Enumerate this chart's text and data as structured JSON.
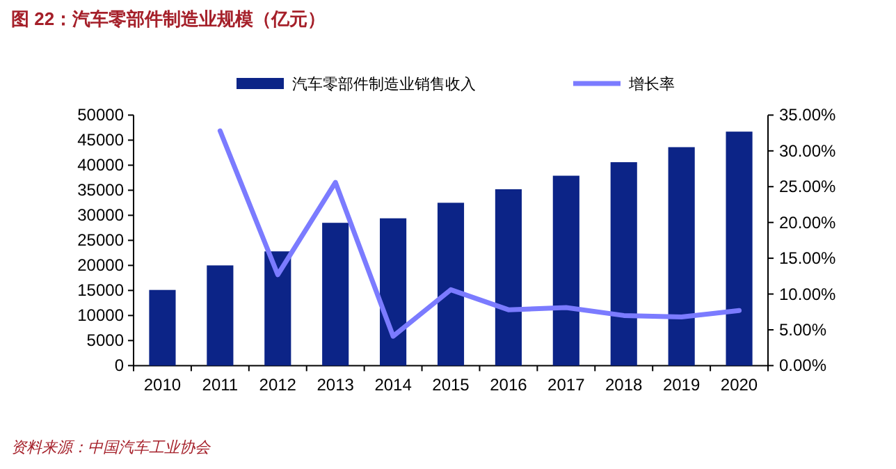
{
  "chart_data": {
    "type": "bar",
    "title": "图 22：汽车零部件制造业规模（亿元）",
    "categories": [
      "2010",
      "2011",
      "2012",
      "2013",
      "2014",
      "2015",
      "2016",
      "2017",
      "2018",
      "2019",
      "2020"
    ],
    "series": [
      {
        "name": "汽车零部件制造业销售收入",
        "color": "#0c2487",
        "values": [
          15100,
          20000,
          22800,
          28500,
          29400,
          32500,
          35200,
          37900,
          40600,
          43600,
          46700
        ]
      },
      {
        "name": "增长率",
        "type": "line",
        "axis": "y2",
        "color": "#7b7bff",
        "values": [
          null,
          32.8,
          12.7,
          25.6,
          4.1,
          10.6,
          7.8,
          8.1,
          7.0,
          6.8,
          7.7
        ]
      }
    ],
    "ylim": [
      0,
      50000
    ],
    "yticks": [
      0,
      5000,
      10000,
      15000,
      20000,
      25000,
      30000,
      35000,
      40000,
      45000,
      50000
    ],
    "y2lim": [
      0,
      35
    ],
    "y2ticks": [
      {
        "value": 0,
        "label": "0.00%"
      },
      {
        "value": 5,
        "label": "5.00%"
      },
      {
        "value": 10,
        "label": "10.00%"
      },
      {
        "value": 15,
        "label": "15.00%"
      },
      {
        "value": 20,
        "label": "20.00%"
      },
      {
        "value": 25,
        "label": "25.00%"
      },
      {
        "value": 30,
        "label": "30.00%"
      },
      {
        "value": 35,
        "label": "35.00%"
      }
    ],
    "legend": "top",
    "grid": false,
    "marker": "none",
    "annotations": [
      "资料来源：中国汽车工业协会"
    ]
  }
}
